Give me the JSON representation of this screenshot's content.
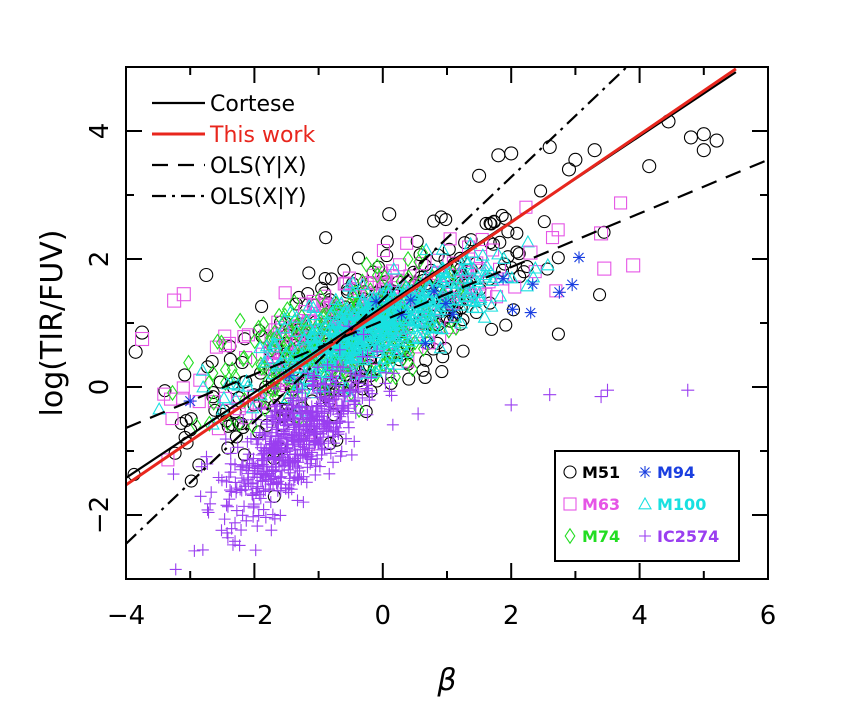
{
  "chart_data": {
    "type": "scatter",
    "xlabel": "β",
    "ylabel": "log(TIR/FUV)",
    "xlim": [
      -4,
      6
    ],
    "ylim": [
      -3,
      5
    ],
    "x_ticks": [
      "−4",
      "−2",
      "0",
      "2",
      "4",
      "6"
    ],
    "y_ticks": [
      "−2",
      "0",
      "2",
      "4"
    ],
    "x_tick_values": [
      -4,
      -2,
      0,
      2,
      4,
      6
    ],
    "y_tick_values": [
      -2,
      0,
      2,
      4
    ],
    "lines": [
      {
        "name": "Cortese",
        "style": "solid",
        "color": "#000000",
        "x": [
          -4,
          5.5
        ],
        "y": [
          -1.42,
          4.92
        ]
      },
      {
        "name": "This work",
        "style": "solid",
        "color": "#e8261d",
        "x": [
          -4,
          5.5
        ],
        "y": [
          -1.53,
          4.97
        ]
      },
      {
        "name": "OLS(Y|X)",
        "style": "dashed",
        "color": "#000000",
        "x": [
          -4,
          6
        ],
        "y": [
          -0.64,
          3.55
        ]
      },
      {
        "name": "OLS(X|Y)",
        "style": "dashdot",
        "color": "#000000",
        "x": [
          -4,
          3.8
        ],
        "y": [
          -2.45,
          5.0
        ]
      }
    ],
    "line_legend": [
      {
        "label": "Cortese",
        "color": "#000000",
        "style": "solid"
      },
      {
        "label": "This work",
        "color": "#e8261d",
        "style": "solid"
      },
      {
        "label": "OLS(Y|X)",
        "color": "#000000",
        "style": "dashed"
      },
      {
        "label": "OLS(X|Y)",
        "color": "#000000",
        "style": "dashdot"
      }
    ],
    "galaxy_legend": [
      {
        "label": "M51",
        "marker": "circle",
        "color": "#000000"
      },
      {
        "label": "M94",
        "marker": "asterisk",
        "color": "#1a3fe0"
      },
      {
        "label": "M63",
        "marker": "square",
        "color": "#e655e6"
      },
      {
        "label": "M100",
        "marker": "triangle",
        "color": "#19e0e0"
      },
      {
        "label": "M74",
        "marker": "diamond",
        "color": "#22dd22"
      },
      {
        "label": "IC2574",
        "marker": "plus",
        "color": "#9a3ef0"
      }
    ],
    "clouds": [
      {
        "name": "M51",
        "marker": "circle",
        "color": "#000000",
        "n": 420,
        "xmean": -0.3,
        "xsd": 1.35,
        "slope": 0.47,
        "icpt": 0.95,
        "sd": 0.55
      },
      {
        "name": "M63",
        "marker": "square",
        "color": "#e655e6",
        "n": 260,
        "xmean": -0.4,
        "xsd": 1.3,
        "slope": 0.38,
        "icpt": 1.15,
        "sd": 0.4
      },
      {
        "name": "M74",
        "marker": "diamond",
        "color": "#22dd22",
        "n": 260,
        "xmean": -0.8,
        "xsd": 0.85,
        "slope": 0.35,
        "icpt": 0.95,
        "sd": 0.45
      },
      {
        "name": "M100",
        "marker": "triangle",
        "color": "#19e0e0",
        "n": 520,
        "xmean": -0.1,
        "xsd": 0.9,
        "slope": 0.4,
        "icpt": 1.0,
        "sd": 0.3
      },
      {
        "name": "IC2574",
        "marker": "plus",
        "color": "#9a3ef0",
        "n": 560,
        "xmean": -1.4,
        "xsd": 0.55,
        "slope": 0.75,
        "icpt": 0.2,
        "sd": 0.42
      },
      {
        "name": "M94",
        "marker": "asterisk",
        "color": "#1a3fe0",
        "n": 14,
        "xmean": 0.8,
        "xsd": 1.2,
        "slope": 0.3,
        "icpt": 1.0,
        "sd": 0.35
      }
    ],
    "outliers": [
      {
        "marker": "circle",
        "color": "#000000",
        "x": 2.0,
        "y": 3.65
      },
      {
        "marker": "circle",
        "color": "#000000",
        "x": 1.8,
        "y": 3.62
      },
      {
        "marker": "circle",
        "color": "#000000",
        "x": 2.6,
        "y": 3.75
      },
      {
        "marker": "circle",
        "color": "#000000",
        "x": 3.0,
        "y": 3.55
      },
      {
        "marker": "circle",
        "color": "#000000",
        "x": 3.3,
        "y": 3.7
      },
      {
        "marker": "circle",
        "color": "#000000",
        "x": 2.9,
        "y": 3.4
      },
      {
        "marker": "circle",
        "color": "#000000",
        "x": 4.15,
        "y": 3.45
      },
      {
        "marker": "circle",
        "color": "#000000",
        "x": 4.45,
        "y": 4.15
      },
      {
        "marker": "circle",
        "color": "#000000",
        "x": 4.8,
        "y": 3.9
      },
      {
        "marker": "circle",
        "color": "#000000",
        "x": 5.0,
        "y": 3.95
      },
      {
        "marker": "circle",
        "color": "#000000",
        "x": 5.0,
        "y": 3.7
      },
      {
        "marker": "circle",
        "color": "#000000",
        "x": 5.2,
        "y": 3.85
      },
      {
        "marker": "circle",
        "color": "#000000",
        "x": 1.5,
        "y": 3.3
      },
      {
        "marker": "circle",
        "color": "#000000",
        "x": 0.1,
        "y": 2.7
      },
      {
        "marker": "circle",
        "color": "#000000",
        "x": -2.75,
        "y": 1.75
      },
      {
        "marker": "circle",
        "color": "#000000",
        "x": -3.75,
        "y": 0.85
      },
      {
        "marker": "circle",
        "color": "#000000",
        "x": -3.85,
        "y": 0.55
      },
      {
        "marker": "square",
        "color": "#e655e6",
        "x": -3.1,
        "y": 1.45
      },
      {
        "marker": "square",
        "color": "#e655e6",
        "x": -3.25,
        "y": 1.35
      },
      {
        "marker": "square",
        "color": "#e655e6",
        "x": -3.75,
        "y": 0.75
      },
      {
        "marker": "square",
        "color": "#e655e6",
        "x": 3.4,
        "y": 2.4
      },
      {
        "marker": "square",
        "color": "#e655e6",
        "x": 3.9,
        "y": 1.9
      },
      {
        "marker": "square",
        "color": "#e655e6",
        "x": 3.45,
        "y": 1.85
      },
      {
        "marker": "square",
        "color": "#e655e6",
        "x": 2.3,
        "y": 2.1
      },
      {
        "marker": "plus",
        "color": "#9a3ef0",
        "x": 4.75,
        "y": -0.05
      },
      {
        "marker": "plus",
        "color": "#9a3ef0",
        "x": 3.5,
        "y": -0.05
      },
      {
        "marker": "plus",
        "color": "#9a3ef0",
        "x": 3.4,
        "y": -0.15
      },
      {
        "marker": "plus",
        "color": "#9a3ef0",
        "x": 2.6,
        "y": -0.12
      },
      {
        "marker": "plus",
        "color": "#9a3ef0",
        "x": 2.0,
        "y": -0.28
      },
      {
        "marker": "plus",
        "color": "#9a3ef0",
        "x": 0.55,
        "y": -0.42
      },
      {
        "marker": "asterisk",
        "color": "#1a3fe0",
        "x": 2.95,
        "y": 1.6
      },
      {
        "marker": "asterisk",
        "color": "#1a3fe0",
        "x": 2.75,
        "y": 1.48
      },
      {
        "marker": "asterisk",
        "color": "#1a3fe0",
        "x": -3.0,
        "y": -0.22
      }
    ]
  }
}
